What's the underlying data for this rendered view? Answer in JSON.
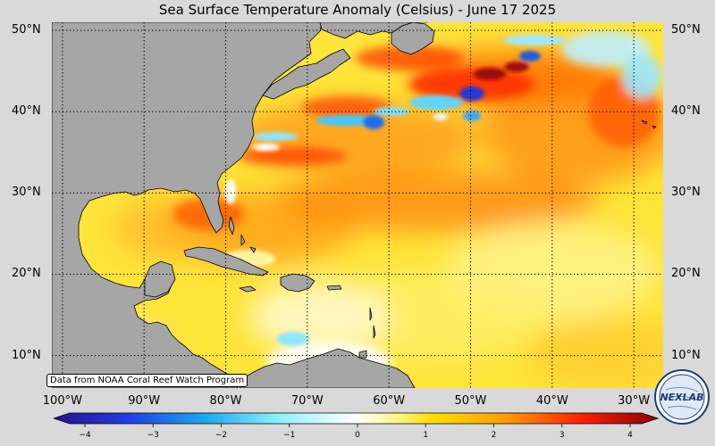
{
  "title": "Sea Surface Temperature Anomaly (Celsius) - June 17 2025",
  "credit": "Data from NOAA Coral Reef Watch Program",
  "logo_text": "NEXLAB",
  "map": {
    "projection": "equirectangular",
    "lon_range": [
      -101.3,
      -26.4
    ],
    "lat_range": [
      6.0,
      51.0
    ],
    "land_color": "#a6a6a6",
    "coast_color": "#000000",
    "grid_style": "dotted black",
    "lon_lines": [
      -100,
      -90,
      -80,
      -70,
      -60,
      -50,
      -40,
      -30
    ],
    "lat_lines": [
      10,
      20,
      30,
      40,
      50
    ]
  },
  "lat_labels": [
    "10°N",
    "20°N",
    "30°N",
    "40°N",
    "50°N"
  ],
  "lon_labels": [
    "100°W",
    "90°W",
    "80°W",
    "70°W",
    "60°W",
    "50°W",
    "40°W",
    "30°W"
  ],
  "colorbar": {
    "min": -4,
    "max": 4,
    "ticks": [
      "−4",
      "−3",
      "−2",
      "−1",
      "0",
      "1",
      "2",
      "3",
      "4"
    ],
    "tick_values": [
      -4,
      -3,
      -2,
      -1,
      0,
      1,
      2,
      3,
      4
    ],
    "colors": [
      {
        "v": -4,
        "c": "#2a0f8f"
      },
      {
        "v": -3,
        "c": "#1f3ee8"
      },
      {
        "v": -2,
        "c": "#1aa8f0"
      },
      {
        "v": -1,
        "c": "#8ff2ff"
      },
      {
        "v": 0,
        "c": "#ffffff"
      },
      {
        "v": 0.6,
        "c": "#fff27a"
      },
      {
        "v": 1,
        "c": "#ffe000"
      },
      {
        "v": 2,
        "c": "#ff9a00"
      },
      {
        "v": 3,
        "c": "#ff1e00"
      },
      {
        "v": 4,
        "c": "#8a0000"
      }
    ]
  }
}
